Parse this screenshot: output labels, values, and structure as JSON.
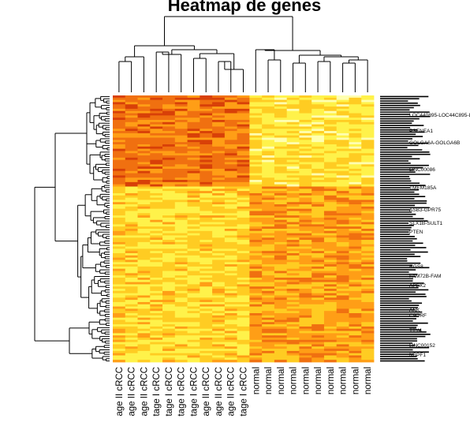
{
  "chart_data": {
    "type": "heatmap",
    "title": "Heatmap de genes",
    "columns": [
      "age II cRCC",
      "age II cRCC",
      "age II cRCC",
      "tage I cRCC",
      "tage I cRCC",
      "tage I cRCC",
      "tage I cRCC",
      "age II cRCC",
      "age II cRCC",
      "age II cRCC",
      "tage I cRCC",
      "normal",
      "normal",
      "normal",
      "normal",
      "normal",
      "normal",
      "normal",
      "normal",
      "normal",
      "normal"
    ],
    "column_groups": [
      {
        "name": "cRCC",
        "count": 11
      },
      {
        "name": "normal",
        "count": 10
      }
    ],
    "row_labels_visible": [
      "LOC440895-LOC44C895-L",
      "PSENEA1",
      "GOLGA6A-GOLGA6B",
      "LINC00086",
      "TMEM185A",
      "ASB3-GPR75",
      "SLX1B-SULT1",
      "PTEN",
      "RGS8",
      "FAM72B-FAM",
      "APEX2",
      "ANK",
      "C9ORF",
      "TTY4",
      "LINC00152",
      "NBPF1"
    ],
    "color_scale": [
      "#FFFFB0",
      "#FFF24A",
      "#FFCC22",
      "#FF9E16",
      "#F07010",
      "#D84008"
    ],
    "dendrograms": {
      "rows": true,
      "columns": true
    }
  }
}
